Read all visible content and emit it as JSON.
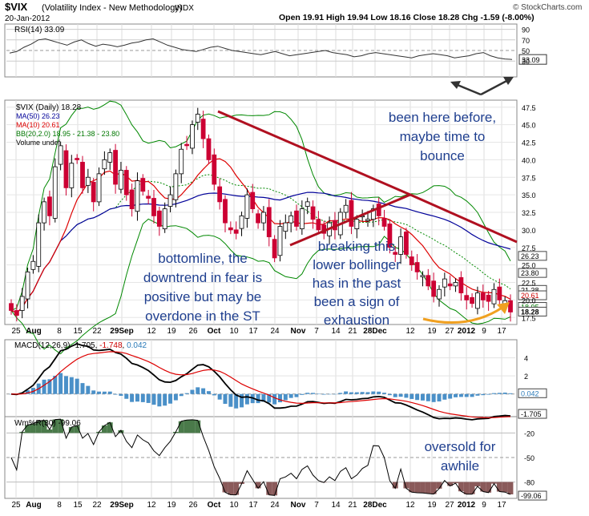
{
  "header": {
    "symbol": "$VIX",
    "name": "(Volatility Index - New Methodology)",
    "exchange": "INDX",
    "date": "20-Jan-2012",
    "ohlc_label": "Open 19.91  High 19.94  Low 18.16  Close 18.28  Chg -1.59 (-8.00%)",
    "watermark": "© StockCharts.com"
  },
  "chart_data": [
    {
      "type": "line",
      "title": "RSI(14) 33.09",
      "ylim": [
        0,
        100
      ],
      "y_ticks": [
        30,
        50,
        70,
        90
      ],
      "current_value_label": "33.09",
      "values": [
        45,
        48,
        56,
        62,
        70,
        72,
        68,
        64,
        60,
        66,
        70,
        63,
        58,
        62,
        60,
        57,
        60,
        64,
        66,
        70,
        72,
        66,
        60,
        56,
        52,
        50,
        48,
        52,
        56,
        58,
        54,
        50,
        48,
        46,
        44,
        42,
        45,
        48,
        44,
        40,
        42,
        44,
        46,
        48,
        50,
        46,
        44,
        42,
        38,
        40,
        44,
        46,
        44,
        42,
        40,
        38,
        36,
        40,
        42,
        44,
        42,
        40,
        36,
        38,
        40,
        44,
        46,
        40,
        36,
        34,
        33
      ]
    },
    {
      "type": "candlestick",
      "title": "$VIX (Daily) 18.28",
      "legend": [
        "$VIX (Daily) 18.28",
        "MA(50) 26.23",
        "MA(10) 20.61",
        "BB(20,2.0) 18.95 - 21.38 - 23.80",
        "Volume undef"
      ],
      "ylim": [
        16.5,
        48.5
      ],
      "y_ticks": [
        17.5,
        20.0,
        22.5,
        25.0,
        27.5,
        30.0,
        32.5,
        35.0,
        37.5,
        40.0,
        42.5,
        45.0,
        47.5
      ],
      "x_tick_labels": [
        "25",
        "Aug",
        "8",
        "15",
        "22",
        "29Sep",
        "12",
        "19",
        "26",
        "Oct",
        "10",
        "17",
        "24",
        "Nov",
        "7",
        "14",
        "21",
        "28Dec",
        "12",
        "19",
        "27",
        "2012",
        "9",
        "17"
      ],
      "closes": [
        18.5,
        17.8,
        20.5,
        24.0,
        25.5,
        31.0,
        34.0,
        32.0,
        39.0,
        42.0,
        36.0,
        39.5,
        40.0,
        36.0,
        37.5,
        34.0,
        38.0,
        40.0,
        41.0,
        36.5,
        38.5,
        35.0,
        33.0,
        37.0,
        35.5,
        34.5,
        32.0,
        30.5,
        33.0,
        35.0,
        38.0,
        41.5,
        42.0,
        45.0,
        46.5,
        43.0,
        40.0,
        36.5,
        34.0,
        31.0,
        30.0,
        29.5,
        32.0,
        35.0,
        33.0,
        31.0,
        32.5,
        29.0,
        26.0,
        30.5,
        31.0,
        32.0,
        30.5,
        33.0,
        34.0,
        31.5,
        30.0,
        29.5,
        31.0,
        30.0,
        32.5,
        33.5,
        30.5,
        31.5,
        32.0,
        31.5,
        33.0,
        32.0,
        30.5,
        27.5,
        26.5,
        29.0,
        26.5,
        25.0,
        24.0,
        23.5,
        22.0,
        20.5,
        21.5,
        23.0,
        22.0,
        22.5,
        21.0,
        20.0,
        19.5,
        21.0,
        20.0,
        19.8,
        21.5,
        20.0,
        19.9,
        18.28
      ],
      "ma50_label": "26.23",
      "ma10_label": "20.61",
      "bb_labels": [
        "23.80",
        "21.38",
        "18.95"
      ],
      "last_label": "18.28"
    },
    {
      "type": "bar",
      "title": "MACD(12,26,9)",
      "macd_value": "-1.705",
      "signal_value": "-1.748",
      "hist_value": "0.042",
      "ylim": [
        -2.5,
        6
      ],
      "y_ticks": [
        -2,
        0,
        2,
        4
      ],
      "labels": [
        "4",
        "2",
        "0.042",
        "-1.705"
      ]
    },
    {
      "type": "line",
      "title": "Wm%R(30) -99.06",
      "ylim": [
        -100,
        0
      ],
      "y_ticks": [
        -80,
        -50,
        -20
      ],
      "current_value_label": "-99.06"
    }
  ],
  "annotations": {
    "bounce": [
      "been here before,",
      "maybe time to",
      "bounce"
    ],
    "bottomline": [
      "bottomline, the",
      "downtrend in fear is",
      "positive but may be",
      "overdone in  the ST"
    ],
    "bollinger": [
      "breaking this",
      "lower bollinger",
      "has in the past",
      "been a sign of",
      "exhaustion"
    ],
    "oversold": [
      "oversold for",
      "awhile"
    ]
  },
  "colors": {
    "up": "#ffffff",
    "down": "#cc0033",
    "ma10": "#dd0000",
    "ma50": "#000099",
    "bb": "#008800",
    "trend": "#b01020",
    "annotation": "#1f3f8f",
    "arrow_orange": "#f0a020",
    "macd_hist": "#4a90c8"
  }
}
